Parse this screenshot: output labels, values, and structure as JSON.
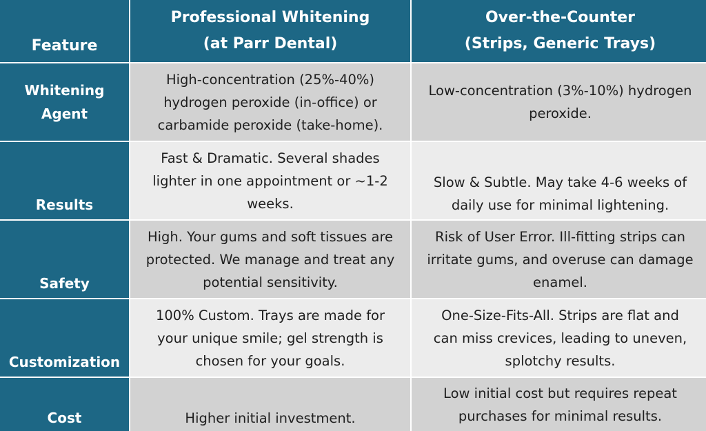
{
  "header": {
    "feature": "Feature",
    "professional": "Professional Whitening\n(at Parr Dental)",
    "otc": "Over-the-Counter\n(Strips, Generic Trays)"
  },
  "rows": [
    {
      "label": "Whitening\nAgent",
      "professional": "High-concentration (25%-40%)\nhydrogen peroxide (in-office) or\ncarbamide peroxide (take-home).",
      "otc": "Low-concentration (3%-10%) hydrogen\nperoxide."
    },
    {
      "label": "Results",
      "professional": "Fast & Dramatic. Several shades\nlighter in one appointment or ~1-2\nweeks.",
      "otc": "Slow & Subtle. May take 4-6 weeks of\ndaily use for minimal lightening."
    },
    {
      "label": "Safety",
      "professional": "High. Your gums and soft tissues are\nprotected. We manage and treat any\npotential sensitivity.",
      "otc": "Risk of User Error. Ill-fitting strips can\nirritate gums, and overuse can damage\nenamel."
    },
    {
      "label": "Customization",
      "professional": "100% Custom. Trays are made for\nyour unique smile; gel strength is\nchosen for your goals.",
      "otc": "One-Size-Fits-All. Strips are flat and\ncan miss crevices, leading to uneven,\nsplotchy results."
    },
    {
      "label": "Cost",
      "professional": "Higher initial investment.",
      "otc": "Low initial cost but requires repeat\npurchases for minimal results."
    }
  ],
  "colors": {
    "header_bg": "#1d6785",
    "dark_row": "#d2d2d2",
    "light_row": "#ececec"
  }
}
